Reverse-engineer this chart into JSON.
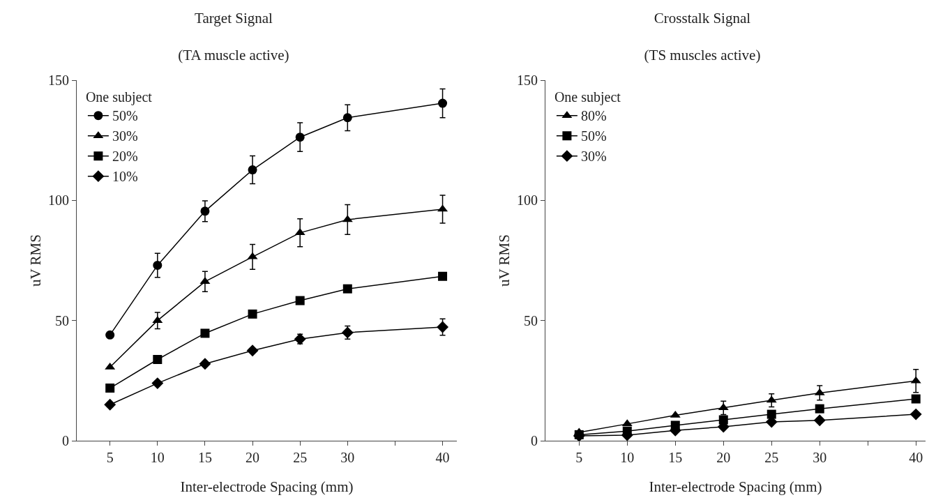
{
  "chart_data": [
    {
      "type": "line",
      "title": "Target Signal",
      "subtitle": "(TA muscle active)",
      "xlabel": "Inter-electrode Spacing (mm)",
      "ylabel": "uV RMS",
      "legend_title": "One subject",
      "legend": "top left",
      "grid": false,
      "line_style": "solid",
      "x": [
        5,
        10,
        15,
        20,
        25,
        30,
        40
      ],
      "xlim": [
        1.5,
        41.5
      ],
      "xticks": [
        5,
        10,
        15,
        20,
        25,
        30,
        {
          "value": 35,
          "label": null
        },
        40
      ],
      "ylim": [
        0,
        150
      ],
      "yticks": [
        0,
        50,
        100,
        150
      ],
      "series": [
        {
          "name": "50%",
          "color": "#000000",
          "marker": "circle",
          "values": [
            44,
            73,
            95.5,
            112.7,
            126.3,
            134.4,
            140.4
          ],
          "errors": [
            null,
            5,
            4.3,
            5.8,
            6,
            5.4,
            6
          ]
        },
        {
          "name": "30%",
          "color": "#000000",
          "marker": "triangle",
          "values": [
            30.6,
            50,
            66.2,
            76.5,
            86.5,
            92,
            96.3
          ],
          "errors": [
            null,
            3.4,
            4.2,
            5.2,
            5.8,
            6.2,
            5.8
          ]
        },
        {
          "name": "20%",
          "color": "#000000",
          "marker": "square",
          "values": [
            21.9,
            33.8,
            44.7,
            52.7,
            58.3,
            63.2,
            68.4
          ],
          "errors": [
            null,
            null,
            null,
            null,
            null,
            null,
            null
          ]
        },
        {
          "name": "10%",
          "color": "#000000",
          "marker": "diamond",
          "values": [
            15,
            23.9,
            32,
            37.5,
            42.3,
            45,
            47.3
          ],
          "errors": [
            null,
            null,
            null,
            null,
            2,
            2.7,
            3.4
          ]
        }
      ]
    },
    {
      "type": "line",
      "title": "Crosstalk Signal",
      "subtitle": "(TS muscles active)",
      "xlabel": "Inter-electrode Spacing (mm)",
      "ylabel": "uV RMS",
      "legend_title": "One subject",
      "legend": "top left",
      "grid": false,
      "line_style": "solid",
      "x": [
        5,
        10,
        15,
        20,
        25,
        30,
        40
      ],
      "xlim": [
        1.5,
        41
      ],
      "xticks": [
        5,
        10,
        15,
        20,
        25,
        30,
        {
          "value": 35,
          "label": null
        },
        40
      ],
      "ylim": [
        0,
        150
      ],
      "yticks": [
        0,
        50,
        100,
        150
      ],
      "series": [
        {
          "name": "80%",
          "color": "#000000",
          "marker": "triangle",
          "values": [
            3.5,
            7,
            10.6,
            13.7,
            16.8,
            19.9,
            24.9
          ],
          "errors": [
            null,
            null,
            null,
            2.8,
            2.7,
            3,
            4.8
          ]
        },
        {
          "name": "50%",
          "color": "#000000",
          "marker": "square",
          "values": [
            2.5,
            4,
            6.4,
            8.7,
            11,
            13.3,
            17.4
          ],
          "errors": [
            null,
            null,
            null,
            null,
            null,
            null,
            null
          ]
        },
        {
          "name": "30%",
          "color": "#000000",
          "marker": "diamond",
          "values": [
            2,
            2.3,
            4.3,
            5.8,
            7.8,
            8.5,
            11
          ],
          "errors": [
            null,
            null,
            null,
            null,
            null,
            null,
            null
          ]
        }
      ]
    }
  ]
}
